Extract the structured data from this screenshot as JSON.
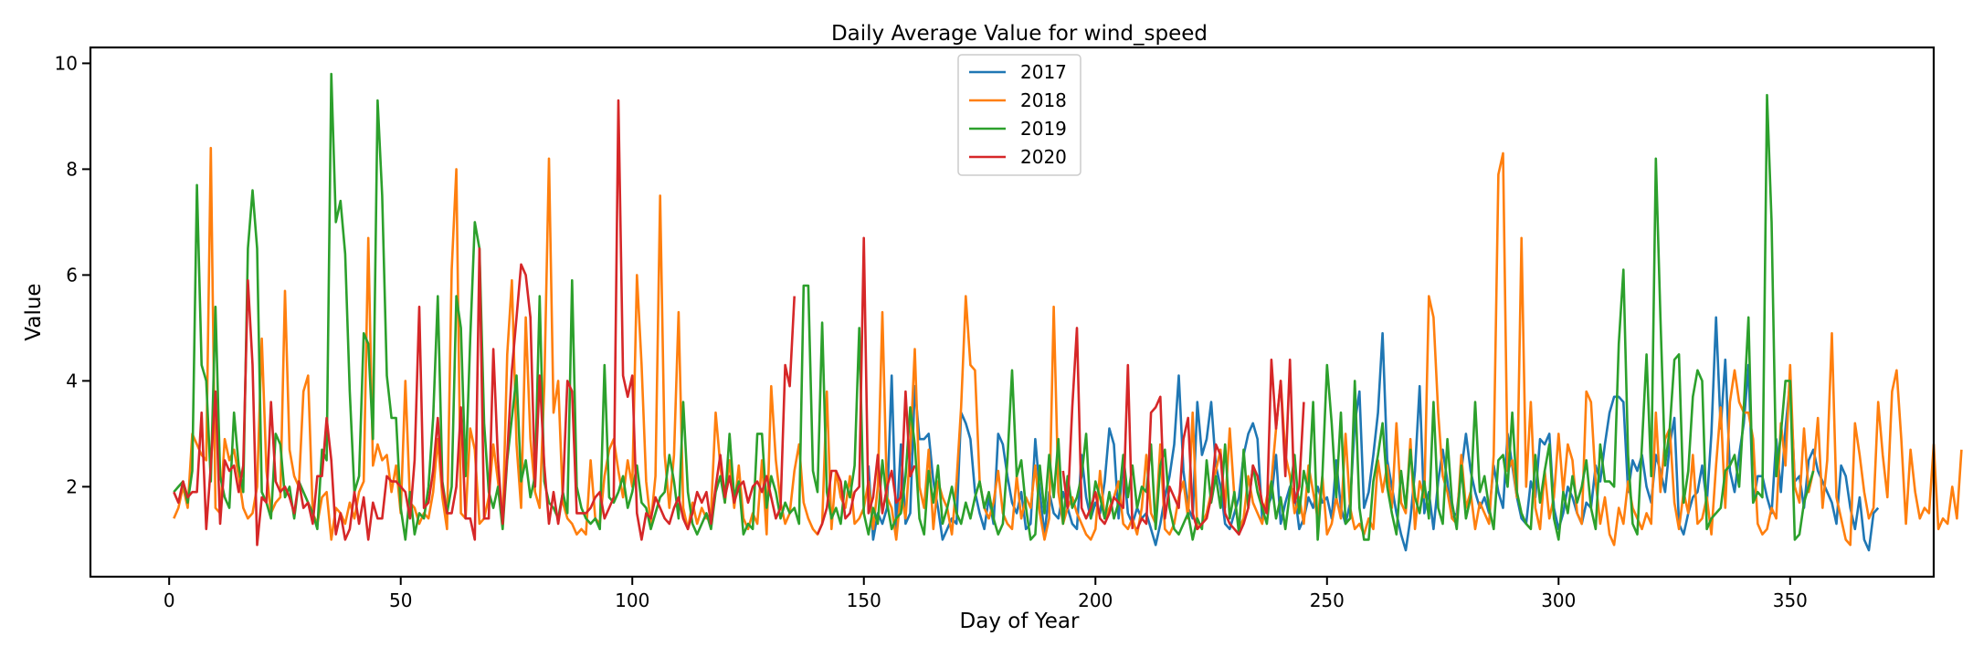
{
  "chart_data": {
    "type": "line",
    "title": "Daily Average Value for wind_speed",
    "xlabel": "Day of Year",
    "ylabel": "Value",
    "xlim": [
      -17,
      381
    ],
    "ylim": [
      0.3,
      10.3
    ],
    "xticks": [
      0,
      50,
      100,
      150,
      200,
      250,
      300,
      350
    ],
    "yticks": [
      2,
      4,
      6,
      8,
      10
    ],
    "grid": false,
    "legend_position": "top-center",
    "series": [
      {
        "name": "2017",
        "color": "#1f77b4",
        "start_day": 151,
        "values": [
          2.4,
          1.0,
          1.5,
          1.3,
          1.6,
          4.1,
          1.2,
          2.8,
          1.3,
          1.5,
          3.9,
          2.9,
          2.9,
          3.0,
          2.1,
          1.6,
          1.0,
          1.2,
          1.4,
          1.3,
          3.4,
          3.2,
          2.9,
          1.9,
          1.5,
          1.2,
          1.8,
          1.3,
          3.0,
          2.8,
          2.2,
          1.7,
          1.5,
          1.9,
          1.2,
          1.3,
          2.9,
          1.9,
          1.1,
          1.9,
          1.5,
          1.4,
          1.9,
          1.6,
          1.3,
          1.2,
          2.6,
          1.8,
          1.4,
          1.7,
          1.5,
          2.1,
          3.1,
          2.8,
          1.4,
          2.5,
          1.5,
          1.3,
          1.6,
          1.4,
          1.5,
          1.2,
          0.9,
          1.3,
          1.8,
          2.2,
          2.8,
          4.1,
          2.3,
          1.6,
          1.4,
          3.6,
          2.6,
          2.9,
          3.6,
          2.4,
          2.0,
          1.3,
          1.2,
          1.5,
          1.8,
          2.6,
          3.0,
          3.2,
          2.9,
          1.4,
          1.6,
          1.8,
          2.6,
          1.3,
          1.7,
          2.0,
          1.9,
          1.2,
          1.4,
          1.8,
          1.6,
          2.0,
          1.7,
          1.8,
          1.4,
          2.5,
          1.6,
          1.3,
          1.7,
          3.2,
          3.8,
          1.6,
          1.9,
          2.6,
          3.4,
          4.9,
          2.5,
          2.0,
          1.5,
          1.1,
          0.8,
          1.4,
          2.3,
          3.9,
          1.5,
          1.9,
          1.2,
          2.1,
          2.7,
          2.1,
          1.4,
          1.5,
          2.3,
          3.0,
          2.3,
          1.9,
          1.6,
          1.8,
          1.5,
          2.4,
          1.9,
          1.6,
          3.0,
          2.4,
          1.8,
          1.4,
          1.3,
          2.1,
          1.8,
          2.9,
          2.8,
          3.0,
          1.6,
          1.2,
          1.5,
          2.0,
          1.8,
          1.5,
          1.3,
          1.7,
          1.6,
          2.4,
          2.1,
          2.8,
          3.4,
          3.7,
          3.7,
          3.6,
          1.9,
          2.5,
          2.3,
          2.6,
          2.0,
          1.7,
          2.6,
          2.3,
          1.9,
          2.8,
          3.3,
          1.3,
          1.1,
          1.5,
          1.8,
          1.9,
          2.4,
          1.7,
          3.0,
          5.2,
          3.1,
          4.4,
          2.3,
          1.9,
          2.6,
          3.2,
          4.3,
          1.7,
          2.2,
          2.2,
          1.8,
          1.5,
          2.9,
          1.9,
          3.1,
          4.0,
          2.1,
          2.2,
          1.6,
          2.5,
          2.7,
          2.3,
          2.1,
          1.9,
          1.7,
          1.3,
          2.4,
          2.2,
          1.6,
          1.2,
          1.8,
          1.0,
          0.8,
          1.5,
          1.6
        ]
      },
      {
        "name": "2018",
        "color": "#ff7f0e",
        "start_day": 1,
        "values": [
          1.4,
          1.6,
          2.0,
          1.6,
          3.0,
          2.8,
          2.6,
          2.5,
          8.4,
          1.6,
          1.5,
          2.9,
          2.5,
          2.7,
          2.2,
          1.6,
          1.4,
          1.5,
          2.0,
          4.8,
          2.3,
          1.5,
          1.7,
          1.8,
          5.7,
          2.7,
          2.2,
          2.0,
          3.8,
          4.1,
          1.5,
          1.3,
          1.8,
          1.9,
          1.0,
          1.6,
          1.5,
          1.3,
          1.7,
          1.4,
          1.9,
          2.1,
          6.7,
          2.4,
          2.8,
          2.5,
          2.6,
          1.9,
          2.4,
          1.5,
          4.0,
          1.7,
          1.6,
          1.3,
          1.5,
          1.4,
          1.9,
          2.9,
          1.8,
          1.2,
          6.1,
          8.0,
          1.5,
          1.4,
          3.1,
          2.7,
          1.3,
          1.4,
          1.8,
          2.8,
          2.1,
          1.3,
          4.5,
          5.9,
          2.8,
          1.6,
          5.2,
          2.9,
          1.9,
          1.6,
          3.9,
          8.2,
          3.4,
          4.0,
          1.7,
          1.4,
          1.3,
          1.1,
          1.2,
          1.1,
          2.5,
          1.4,
          1.3,
          2.2,
          2.7,
          2.9,
          2.3,
          1.8,
          2.5,
          2.0,
          6.0,
          4.3,
          2.1,
          1.3,
          2.2,
          7.5,
          2.6,
          1.6,
          2.6,
          5.3,
          1.6,
          1.2,
          1.7,
          1.3,
          1.6,
          1.4,
          1.5,
          3.4,
          2.4,
          1.7,
          2.5,
          1.6,
          2.4,
          1.4,
          1.2,
          1.5,
          1.3,
          2.5,
          1.1,
          3.9,
          2.5,
          1.7,
          1.3,
          1.5,
          2.3,
          2.8,
          1.7,
          1.4,
          1.2,
          1.1,
          1.3,
          3.8,
          1.2,
          2.3,
          1.8,
          1.6,
          2.2,
          1.3,
          1.4,
          1.6,
          2.1,
          1.2,
          2.0,
          5.3,
          1.8,
          1.6,
          1.0,
          1.9,
          1.4,
          2.7,
          4.6,
          2.0,
          1.6,
          2.7,
          1.2,
          2.1,
          1.8,
          1.6,
          1.1,
          2.1,
          3.5,
          5.6,
          4.3,
          4.2,
          2.1,
          1.6,
          1.4,
          1.7,
          2.3,
          1.5,
          1.3,
          1.2,
          2.2,
          1.4,
          1.8,
          1.6,
          2.4,
          1.5,
          1.0,
          1.4,
          5.4,
          1.9,
          1.3,
          1.6,
          1.8,
          1.5,
          1.3,
          1.1,
          1.0,
          1.2,
          2.3,
          1.4,
          1.6,
          1.8,
          2.1,
          1.3,
          1.2,
          1.4,
          1.1,
          1.6,
          2.6,
          1.5,
          1.3,
          2.8,
          1.2,
          1.1,
          1.3,
          1.8,
          2.1,
          1.4,
          3.4,
          1.2,
          1.3,
          1.5,
          1.9,
          2.3,
          2.7,
          1.6,
          3.1,
          1.8,
          1.2,
          1.4,
          2.2,
          1.7,
          1.5,
          1.3,
          1.8,
          2.1,
          3.1,
          4.0,
          2.6,
          2.2,
          1.5,
          1.8,
          1.3,
          2.4,
          1.9,
          1.4,
          2.2,
          1.1,
          1.3,
          1.8,
          1.4,
          3.0,
          1.6,
          1.2,
          1.3,
          1.1,
          1.4,
          1.2,
          2.5,
          1.9,
          2.4,
          1.6,
          3.2,
          1.7,
          1.5,
          2.9,
          1.2,
          2.1,
          1.8,
          5.6,
          5.2,
          3.4,
          2.2,
          1.9,
          1.4,
          1.3,
          2.6,
          1.6,
          1.9,
          1.2,
          1.7,
          1.5,
          1.3,
          2.6,
          7.9,
          8.3,
          2.3,
          2.5,
          1.8,
          6.7,
          2.0,
          3.6,
          1.6,
          1.2,
          2.3,
          1.4,
          1.8,
          3.0,
          1.9,
          2.8,
          2.5,
          1.5,
          1.3,
          3.8,
          3.6,
          2.1,
          1.3,
          1.8,
          1.1,
          0.9,
          1.6,
          1.3,
          2.1,
          1.6,
          1.4,
          1.2,
          1.5,
          1.3,
          3.4,
          1.9,
          2.9,
          3.1,
          1.7,
          1.2,
          1.9,
          1.5,
          2.6,
          1.3,
          1.4,
          1.8,
          1.1,
          2.4,
          3.5,
          1.6,
          3.6,
          4.2,
          3.6,
          3.4,
          3.4,
          2.9,
          1.3,
          1.1,
          1.2,
          1.6,
          1.4,
          3.2,
          2.4,
          4.3,
          2.0,
          1.7,
          3.1,
          1.9,
          2.3,
          3.3,
          1.6,
          2.5,
          4.9,
          1.8,
          1.4,
          1.0,
          0.9,
          3.2,
          2.6,
          1.9,
          1.4,
          1.6,
          3.6,
          2.6,
          1.8,
          3.8,
          4.2,
          2.9,
          1.3,
          2.7,
          1.9,
          1.4,
          1.6,
          1.5,
          2.8,
          1.2,
          1.4,
          1.3,
          2.0,
          1.4,
          2.7
        ]
      },
      {
        "name": "2019",
        "color": "#2ca02c",
        "start_day": 1,
        "values": [
          1.9,
          2.0,
          2.1,
          1.7,
          2.3,
          7.7,
          4.3,
          4.0,
          2.1,
          5.4,
          2.2,
          1.8,
          1.6,
          3.4,
          2.4,
          1.9,
          6.5,
          7.6,
          6.5,
          1.9,
          1.7,
          1.4,
          3.0,
          2.8,
          1.8,
          2.0,
          1.4,
          2.1,
          1.9,
          1.7,
          1.5,
          1.2,
          2.7,
          2.5,
          9.8,
          7.0,
          7.4,
          6.4,
          3.8,
          1.9,
          2.2,
          4.9,
          4.7,
          2.9,
          9.3,
          7.5,
          4.1,
          3.3,
          3.3,
          1.6,
          1.0,
          1.9,
          1.1,
          1.5,
          1.4,
          2.0,
          3.3,
          5.6,
          2.1,
          1.5,
          2.0,
          5.6,
          5.0,
          2.2,
          4.8,
          7.0,
          6.5,
          3.2,
          1.9,
          1.6,
          2.0,
          1.2,
          2.5,
          3.3,
          4.1,
          2.1,
          2.5,
          1.8,
          2.2,
          5.6,
          2.1,
          1.7,
          1.6,
          1.4,
          1.9,
          1.5,
          5.9,
          2.0,
          1.6,
          1.4,
          1.3,
          1.4,
          1.2,
          4.3,
          1.8,
          1.7,
          1.9,
          2.2,
          1.6,
          1.9,
          2.4,
          1.7,
          1.6,
          1.2,
          1.5,
          1.8,
          1.9,
          2.6,
          2.1,
          1.4,
          3.6,
          1.9,
          1.3,
          1.1,
          1.3,
          1.5,
          1.2,
          1.9,
          2.2,
          1.7,
          3.0,
          1.8,
          2.1,
          1.1,
          1.3,
          1.2,
          3.0,
          3.0,
          1.6,
          2.2,
          1.9,
          1.4,
          1.7,
          1.5,
          1.6,
          1.3,
          5.8,
          5.8,
          2.3,
          1.9,
          5.1,
          1.9,
          1.4,
          1.6,
          1.3,
          2.1,
          1.8,
          2.4,
          5.0,
          1.5,
          1.1,
          1.6,
          1.3,
          2.5,
          1.7,
          1.2,
          1.4,
          1.5,
          2.2,
          3.5,
          2.8,
          1.4,
          1.1,
          2.3,
          1.7,
          2.4,
          1.3,
          1.6,
          2.0,
          1.5,
          1.3,
          1.7,
          1.4,
          1.8,
          2.1,
          1.6,
          1.9,
          1.4,
          1.1,
          1.3,
          2.5,
          4.2,
          2.2,
          2.5,
          1.6,
          1.0,
          1.1,
          2.4,
          1.5,
          2.6,
          1.8,
          2.9,
          1.3,
          2.2,
          1.6,
          1.8,
          2.2,
          3.0,
          1.4,
          2.1,
          1.8,
          1.4,
          1.9,
          1.4,
          1.7,
          2.6,
          1.8,
          2.4,
          1.6,
          2.0,
          1.9,
          2.8,
          1.2,
          2.4,
          2.7,
          1.6,
          1.2,
          1.1,
          1.3,
          1.5,
          1.0,
          1.4,
          1.2,
          2.5,
          1.7,
          2.2,
          1.6,
          2.8,
          1.4,
          1.9,
          1.1,
          2.7,
          1.6,
          2.4,
          1.9,
          1.6,
          1.3,
          2.1,
          1.4,
          1.8,
          1.2,
          1.9,
          2.6,
          1.5,
          2.3,
          1.9,
          3.6,
          1.0,
          2.2,
          4.3,
          3.2,
          1.8,
          3.4,
          1.3,
          1.4,
          4.0,
          1.6,
          1.0,
          1.0,
          2.1,
          2.6,
          3.2,
          2.0,
          1.5,
          1.1,
          2.3,
          1.6,
          2.7,
          1.8,
          1.5,
          2.1,
          1.4,
          3.6,
          1.6,
          1.3,
          2.9,
          1.7,
          1.2,
          2.4,
          1.4,
          1.8,
          3.6,
          1.9,
          2.2,
          1.6,
          1.2,
          2.5,
          2.6,
          2.0,
          3.4,
          1.9,
          1.5,
          1.3,
          1.2,
          2.6,
          1.7,
          2.3,
          2.8,
          1.4,
          1.0,
          1.9,
          1.5,
          2.2,
          1.7,
          2.0,
          2.5,
          1.6,
          1.2,
          2.8,
          2.1,
          2.1,
          2.0,
          4.7,
          6.1,
          2.6,
          1.3,
          1.1,
          2.8,
          4.5,
          2.2,
          8.2,
          5.2,
          2.4,
          3.1,
          4.4,
          4.5,
          1.7,
          2.3,
          3.7,
          4.2,
          4.0,
          1.2,
          1.4,
          1.5,
          1.6,
          2.3,
          2.4,
          2.6,
          2.0,
          3.5,
          5.2,
          1.7,
          1.9,
          1.8,
          9.4,
          7.0,
          2.2,
          3.0,
          4.0,
          4.0,
          1.0,
          1.1,
          1.7,
          2.0,
          2.3
        ]
      },
      {
        "name": "2020",
        "color": "#d62728",
        "segments": [
          {
            "start_day": 1,
            "values": [
              1.9,
              1.7,
              2.1,
              1.8,
              1.9,
              1.9,
              3.4,
              1.2,
              2.4,
              3.8,
              1.3,
              2.5,
              2.3,
              2.4,
              1.9,
              2.4,
              5.9,
              4.3,
              0.9,
              1.8,
              1.7,
              3.6,
              2.1,
              1.9,
              2.0,
              1.8,
              1.5,
              2.1,
              1.6,
              1.7,
              1.3,
              2.2,
              2.2,
              3.3,
              2.5,
              1.1,
              1.5,
              1.0,
              1.2,
              1.9,
              1.3,
              1.8,
              1.0,
              1.7,
              1.4,
              1.4,
              2.2,
              2.1,
              2.1,
              2.0,
              1.9,
              1.4,
              2.5,
              5.4,
              1.6,
              1.7,
              2.3,
              3.3,
              2.0,
              1.5,
              1.5,
              2.0,
              3.5,
              1.4,
              1.4,
              1.0,
              6.5,
              1.4,
              1.4,
              4.6,
              2.5,
              1.3,
              2.6,
              4.2,
              5.2,
              6.2,
              6.0,
              5.2,
              2.0,
              4.1,
              2.4,
              1.3,
              1.9,
              1.3,
              1.9,
              4.0,
              3.8,
              1.5,
              1.5,
              1.5,
              1.6,
              1.8,
              1.9,
              1.4,
              1.6,
              1.8,
              9.3,
              4.1,
              3.7,
              4.1,
              1.5,
              1.0,
              1.5,
              1.4,
              1.8,
              1.6,
              1.4,
              1.3,
              1.6,
              1.8,
              1.4,
              1.2,
              1.5,
              1.9,
              1.7,
              1.9,
              1.3,
              2.0,
              2.6,
              1.8,
              2.2,
              1.7,
              2.0,
              2.1,
              1.7,
              2.0,
              2.1,
              1.9,
              2.2,
              1.8,
              1.4,
              1.6,
              4.3,
              3.9,
              5.6
            ]
          },
          {
            "start_day": 140,
            "values": [
              1.1,
              1.3,
              1.6,
              2.3,
              2.3,
              2.1,
              1.4,
              1.5,
              1.9,
              2.0,
              6.7,
              1.5,
              1.8,
              2.6,
              1.5,
              2.0,
              2.3,
              1.7,
              1.8,
              3.8,
              2.2,
              2.4
            ]
          },
          {
            "start_day": 193,
            "values": [
              2.3,
              1.6,
              3.5,
              5.0,
              1.6,
              1.4,
              1.6,
              1.9,
              1.4,
              1.3,
              1.5,
              1.8,
              1.7,
              1.6,
              4.3,
              1.2
            ]
          },
          {
            "start_day": 209,
            "values": [
              1.2,
              1.4,
              1.3,
              3.4,
              3.5,
              3.7,
              1.4,
              2.0,
              1.8,
              1.6,
              2.9,
              3.3,
              1.5,
              1.2,
              1.3,
              1.4,
              1.8,
              2.8,
              2.6,
              1.5,
              1.3,
              1.2,
              1.1,
              1.3,
              1.6,
              2.4,
              2.2,
              1.7,
              1.5,
              4.4,
              3.1,
              4.0,
              2.2,
              4.4,
              1.7,
              2.0,
              3.6
            ]
          }
        ]
      }
    ]
  }
}
